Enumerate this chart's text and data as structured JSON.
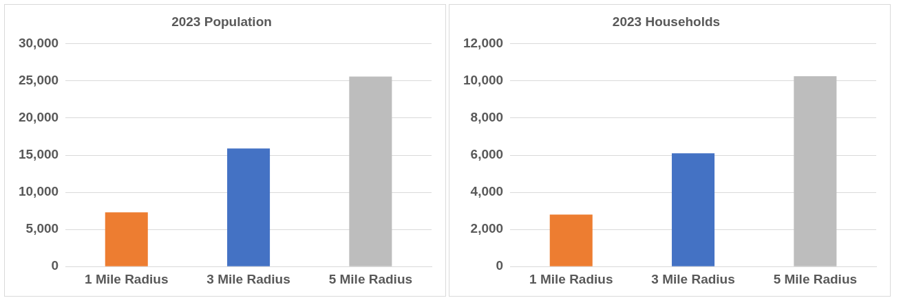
{
  "chart_data": [
    {
      "type": "bar",
      "title": "2023 Population",
      "categories": [
        "1 Mile Radius",
        "3 Mile Radius",
        "5 Mile Radius"
      ],
      "values": [
        7300,
        15900,
        25600
      ],
      "colors": [
        "#ed7d31",
        "#4472c4",
        "#bdbdbd"
      ],
      "ylim": [
        0,
        30000
      ],
      "yticks": [
        {
          "value": 0,
          "label": "0"
        },
        {
          "value": 5000,
          "label": "5,000"
        },
        {
          "value": 10000,
          "label": "10,000"
        },
        {
          "value": 15000,
          "label": "15,000"
        },
        {
          "value": 20000,
          "label": "20,000"
        },
        {
          "value": 25000,
          "label": "25,000"
        },
        {
          "value": 30000,
          "label": "30,000"
        }
      ],
      "grid": "y",
      "legend": false
    },
    {
      "type": "bar",
      "title": "2023 Households",
      "categories": [
        "1 Mile Radius",
        "3 Mile Radius",
        "5 Mile Radius"
      ],
      "values": [
        2800,
        6100,
        10250
      ],
      "colors": [
        "#ed7d31",
        "#4472c4",
        "#bdbdbd"
      ],
      "ylim": [
        0,
        12000
      ],
      "yticks": [
        {
          "value": 0,
          "label": "0"
        },
        {
          "value": 2000,
          "label": "2,000"
        },
        {
          "value": 4000,
          "label": "4,000"
        },
        {
          "value": 6000,
          "label": "6,000"
        },
        {
          "value": 8000,
          "label": "8,000"
        },
        {
          "value": 10000,
          "label": "10,000"
        },
        {
          "value": 12000,
          "label": "12,000"
        }
      ],
      "grid": "y",
      "legend": false
    }
  ]
}
